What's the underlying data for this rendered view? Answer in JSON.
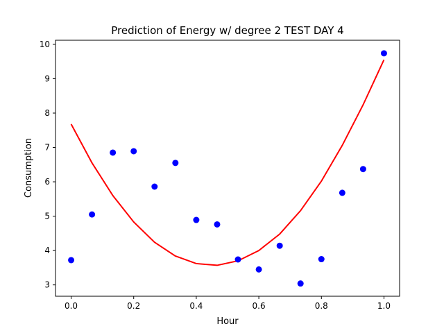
{
  "chart_data": {
    "type": "scatter",
    "title": "Prediction of Energy w/ degree 2 TEST DAY 4",
    "xlabel": "Hour",
    "ylabel": "Consumption",
    "xlim": [
      -0.05,
      1.05
    ],
    "ylim": [
      2.67,
      10.12
    ],
    "xticks": [
      0.0,
      0.2,
      0.4,
      0.6,
      0.8,
      1.0
    ],
    "xtick_labels": [
      "0.0",
      "0.2",
      "0.4",
      "0.6",
      "0.8",
      "1.0"
    ],
    "yticks": [
      3,
      4,
      5,
      6,
      7,
      8,
      9,
      10
    ],
    "ytick_labels": [
      "3",
      "4",
      "5",
      "6",
      "7",
      "8",
      "9",
      "10"
    ],
    "grid": false,
    "series": [
      {
        "type": "scatter",
        "color": "#0000ff",
        "x": [
          0.0,
          0.0667,
          0.1333,
          0.2,
          0.2667,
          0.3333,
          0.4,
          0.4667,
          0.5333,
          0.6,
          0.6667,
          0.7333,
          0.8,
          0.8667,
          0.9333,
          1.0
        ],
        "y": [
          3.72,
          5.05,
          6.85,
          6.89,
          5.86,
          6.55,
          4.89,
          4.76,
          3.74,
          3.45,
          4.14,
          3.04,
          3.75,
          5.68,
          6.37,
          9.74
        ]
      },
      {
        "type": "line",
        "color": "#ff0000",
        "x": [
          0.0,
          0.0667,
          0.1333,
          0.2,
          0.2667,
          0.3333,
          0.4,
          0.4667,
          0.5333,
          0.6,
          0.6667,
          0.7333,
          0.8,
          0.8667,
          0.9333,
          1.0
        ],
        "y": [
          7.68,
          6.55,
          5.6,
          4.83,
          4.24,
          3.84,
          3.62,
          3.57,
          3.7,
          4.0,
          4.48,
          5.16,
          6.02,
          7.06,
          8.24,
          9.55
        ]
      }
    ]
  }
}
